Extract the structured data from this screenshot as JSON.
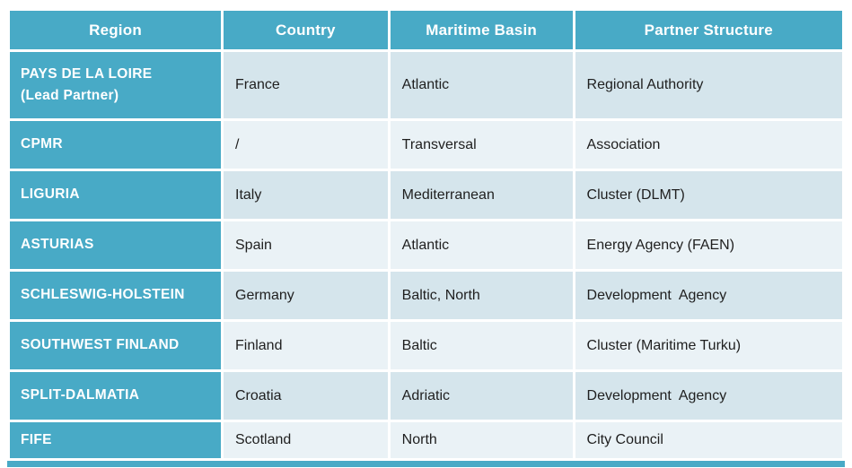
{
  "colors": {
    "teal": "#48aac6",
    "band_dark": "#d5e5ec",
    "band_light": "#eaf2f6",
    "header_text": "#ffffff",
    "body_text": "#1f1f1f",
    "page_bg": "#ffffff",
    "divider": "#ffffff"
  },
  "chart_data": {
    "type": "table",
    "columns": [
      "Region",
      "Country",
      "Maritime Basin",
      "Partner Structure"
    ],
    "rows": [
      {
        "region": "PAYS DE LA LOIRE",
        "region_note": "(Lead Partner)",
        "country": "France",
        "maritime_basin": "Atlantic",
        "partner_structure": "Regional Authority"
      },
      {
        "region": "CPMR",
        "country": "/",
        "maritime_basin": "Transversal",
        "partner_structure": "Association"
      },
      {
        "region": "LIGURIA",
        "country": "Italy",
        "maritime_basin": "Mediterranean",
        "partner_structure": "Cluster (DLMT)"
      },
      {
        "region": "ASTURIAS",
        "country": "Spain",
        "maritime_basin": "Atlantic",
        "partner_structure": "Energy Agency (FAEN)"
      },
      {
        "region": "SCHLESWIG-HOLSTEIN",
        "country": "Germany",
        "maritime_basin": "Baltic, North",
        "partner_structure": "Development  Agency"
      },
      {
        "region": "SOUTHWEST FINLAND",
        "country": "Finland",
        "maritime_basin": "Baltic",
        "partner_structure": "Cluster (Maritime Turku)"
      },
      {
        "region": "SPLIT-DALMATIA",
        "country": "Croatia",
        "maritime_basin": "Adriatic",
        "partner_structure": "Development  Agency"
      },
      {
        "region": "FIFE",
        "country": "Scotland",
        "maritime_basin": "North",
        "partner_structure": "City Council"
      }
    ]
  }
}
